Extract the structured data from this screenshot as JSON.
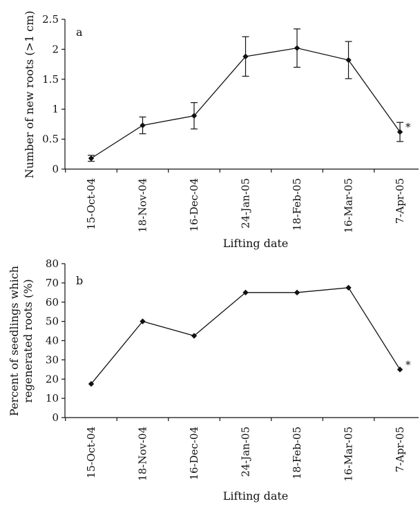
{
  "chart_data": [
    {
      "panel": "a",
      "type": "line",
      "xlabel": "Lifting date",
      "ylabel": "Number of new roots (>1 cm)",
      "categories": [
        "15-Oct-04",
        "18-Nov-04",
        "16-Dec-04",
        "24-Jan-05",
        "18-Feb-05",
        "16-Mar-05",
        "7-Apr-05"
      ],
      "values": [
        0.18,
        0.73,
        0.89,
        1.88,
        2.02,
        1.82,
        0.62
      ],
      "error": [
        0.05,
        0.14,
        0.22,
        0.33,
        0.32,
        0.31,
        0.16
      ],
      "yticks": [
        "0",
        "0.5",
        "1",
        "1.5",
        "2",
        "2.5"
      ],
      "ylim": [
        0,
        2.5
      ],
      "annotation": {
        "category_index": 6,
        "text": "*"
      },
      "grid": false,
      "legend": "none"
    },
    {
      "panel": "b",
      "type": "line",
      "xlabel": "Lifting date",
      "ylabel": "Percent of seedlings which regenerated roots (%)",
      "ylabel_lines": [
        "Percent of seedlings which",
        "regenerated roots (%)"
      ],
      "categories": [
        "15-Oct-04",
        "18-Nov-04",
        "16-Dec-04",
        "24-Jan-05",
        "18-Feb-05",
        "16-Mar-05",
        "7-Apr-05"
      ],
      "values": [
        17.5,
        50,
        42.5,
        65,
        65,
        67.5,
        25
      ],
      "yticks": [
        "0",
        "10",
        "20",
        "30",
        "40",
        "50",
        "60",
        "70",
        "80"
      ],
      "ylim": [
        0,
        80
      ],
      "annotation": {
        "category_index": 6,
        "text": "*"
      },
      "grid": false,
      "legend": "none"
    }
  ]
}
